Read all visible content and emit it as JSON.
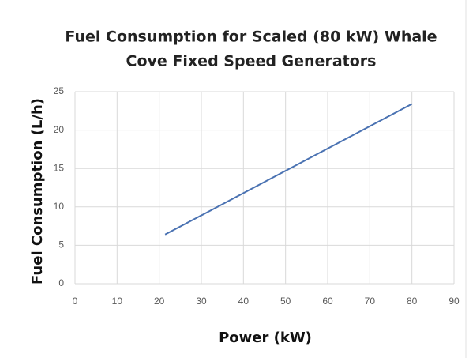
{
  "chart_data": {
    "type": "line",
    "title": [
      "Fuel Consumption  for Scaled (80 kW) Whale",
      "Cove Fixed Speed Generators"
    ],
    "xlabel": "Power (kW)",
    "ylabel": "Fuel Consumption  (L/h)",
    "x": [
      21.4,
      80
    ],
    "series": [
      {
        "name": "Fuel Consumption",
        "color": "#4a72b2",
        "values": [
          6.4,
          23.4
        ]
      }
    ],
    "xlim": [
      0,
      90
    ],
    "xticks": [
      0,
      10,
      20,
      30,
      40,
      50,
      60,
      70,
      80,
      90
    ],
    "ylim": [
      0,
      25
    ],
    "yticks": [
      0,
      5,
      10,
      15,
      20,
      25
    ],
    "grid": true
  }
}
